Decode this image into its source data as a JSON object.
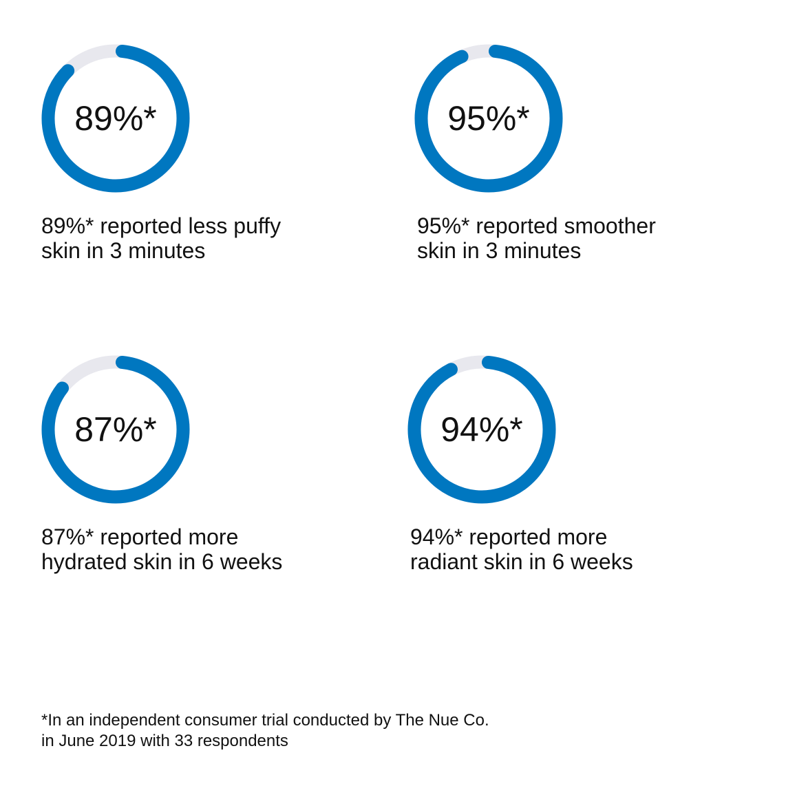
{
  "colors": {
    "accent": "#0077c0",
    "track": "#e8e8ee",
    "text": "#111111"
  },
  "stats": [
    {
      "value": 89,
      "label": "89%*",
      "caption_line1": "89%* reported less puffy",
      "caption_line2": "skin in 3 minutes"
    },
    {
      "value": 95,
      "label": "95%*",
      "caption_line1": "95%* reported smoother",
      "caption_line2": "skin in 3 minutes"
    },
    {
      "value": 87,
      "label": "87%*",
      "caption_line1": "87%* reported more",
      "caption_line2": "hydrated skin in 6 weeks"
    },
    {
      "value": 94,
      "label": "94%*",
      "caption_line1": "94%* reported more",
      "caption_line2": "radiant skin in 6 weeks"
    }
  ],
  "footnote": {
    "line1": "*In an independent consumer trial conducted by The Nue Co.",
    "line2": "in June 2019 with 33 respondents"
  },
  "chart_data": {
    "type": "pie",
    "subtype": "donut-progress",
    "categories": [
      "reported less puffy skin in 3 minutes",
      "reported smoother skin in 3 minutes",
      "reported more hydrated skin in 6 weeks",
      "reported more radiant skin in 6 weeks"
    ],
    "values": [
      89,
      95,
      87,
      94
    ],
    "unit": "%",
    "title": "",
    "annotations": [
      "*In an independent consumer trial conducted by The Nue Co. in June 2019 with 33 respondents"
    ]
  }
}
